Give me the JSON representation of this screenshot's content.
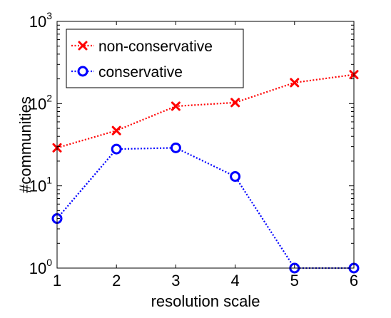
{
  "chart_data": {
    "type": "line",
    "title": "",
    "xlabel": "resolution scale",
    "ylabel": "#communities",
    "x": [
      1,
      2,
      3,
      4,
      5,
      6
    ],
    "xlim": [
      1,
      6
    ],
    "ylim": [
      1,
      1000
    ],
    "yscale": "log",
    "xticks": [
      1,
      2,
      3,
      4,
      5,
      6
    ],
    "yticks": [
      {
        "value": 1,
        "base": "10",
        "exp": "0"
      },
      {
        "value": 10,
        "base": "10",
        "exp": "1"
      },
      {
        "value": 100,
        "base": "10",
        "exp": "2"
      },
      {
        "value": 1000,
        "base": "10",
        "exp": "3"
      }
    ],
    "grid": false,
    "legend": {
      "position": "top-left"
    },
    "series": [
      {
        "name": "non-conservative",
        "color": "#ff0000",
        "marker": "x",
        "linestyle": "dotted",
        "values": [
          29,
          47,
          93,
          103,
          180,
          225
        ]
      },
      {
        "name": "conservative",
        "color": "#0000ff",
        "marker": "o",
        "linestyle": "dotted",
        "values": [
          4,
          28,
          29,
          13,
          1,
          1
        ]
      }
    ]
  }
}
